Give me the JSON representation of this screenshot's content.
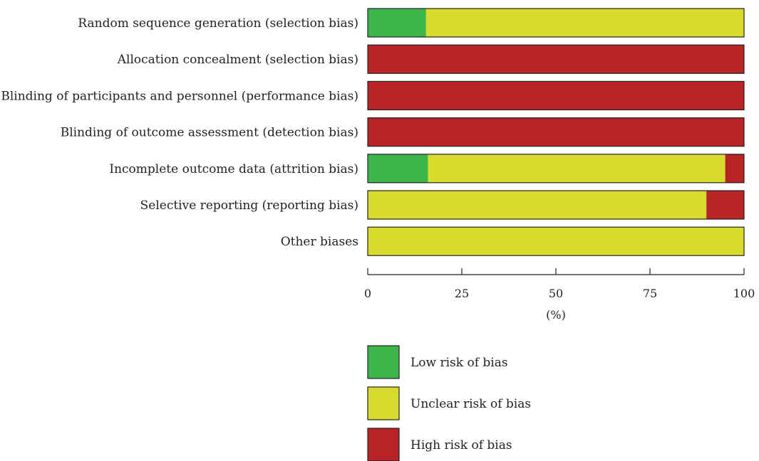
{
  "chart_data": {
    "type": "bar",
    "orientation": "horizontal",
    "stacked": true,
    "categories": [
      "Random sequence generation (selection bias)",
      "Allocation concealment (selection bias)",
      "Blinding of participants and personnel (performance bias)",
      "Blinding of outcome assessment (detection bias)",
      "Incomplete outcome data (attrition bias)",
      "Selective reporting (reporting bias)",
      "Other biases"
    ],
    "series": [
      {
        "name": "Low risk of bias",
        "color": "#3cb54a",
        "values": [
          15.5,
          0,
          0,
          0,
          16,
          0,
          0
        ]
      },
      {
        "name": "Unclear risk of bias",
        "color": "#d7db2e",
        "values": [
          84.5,
          0,
          0,
          0,
          79,
          90,
          100
        ]
      },
      {
        "name": "High risk of bias",
        "color": "#b82426",
        "values": [
          0,
          100,
          100,
          100,
          5,
          10,
          0
        ]
      }
    ],
    "xlabel": "(%)",
    "xlim": [
      0,
      100
    ],
    "xticks": [
      0,
      25,
      50,
      75,
      100
    ],
    "grid": false,
    "legend_position": "bottom"
  }
}
